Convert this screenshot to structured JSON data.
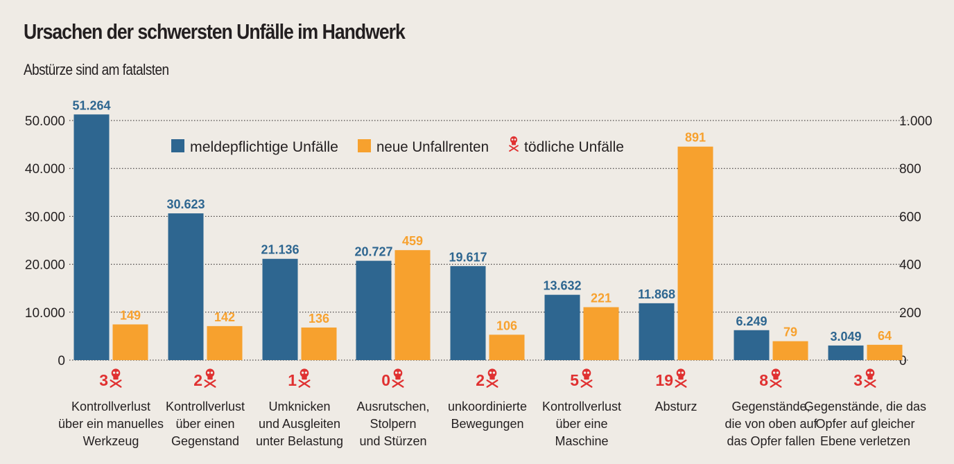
{
  "header": {
    "title": "Ursachen der schwersten Unfälle im Handwerk",
    "subtitle": "Abstürze sind am fatalsten"
  },
  "colors": {
    "background": "#efebe5",
    "reportable": "#2e6690",
    "pensions": "#f7a12e",
    "fatal": "#e03131",
    "text": "#231f20"
  },
  "chart_data": {
    "type": "bar",
    "title": "Ursachen der schwersten Unfälle im Handwerk",
    "subtitle": "Abstürze sind am fatalsten",
    "categories": [
      [
        "Kontrollverlust",
        "über ein manuelles",
        "Werkzeug"
      ],
      [
        "Kontrollverlust",
        "über einen",
        "Gegenstand"
      ],
      [
        "Umknicken",
        "und Ausgleiten",
        "unter Belastung"
      ],
      [
        "Ausrutschen,",
        "Stolpern",
        "und Stürzen"
      ],
      [
        "unkoordinierte",
        "Bewegungen"
      ],
      [
        "Kontrollverlust",
        "über eine",
        "Maschine"
      ],
      [
        "Absturz"
      ],
      [
        "Gegenstände,",
        "die von oben auf",
        "das Opfer fallen"
      ],
      [
        "Gegenstände, die das",
        "Opfer auf gleicher",
        "Ebene verletzen"
      ]
    ],
    "series": [
      {
        "name": "meldepflichtige Unfälle",
        "axis": "left",
        "values": [
          51264,
          30623,
          21136,
          20727,
          19617,
          13632,
          11868,
          6249,
          3049
        ],
        "labels": [
          "51.264",
          "30.623",
          "21.136",
          "20.727",
          "19.617",
          "13.632",
          "11.868",
          "6.249",
          "3.049"
        ]
      },
      {
        "name": "neue Unfallrenten",
        "axis": "right",
        "values": [
          149,
          142,
          136,
          459,
          106,
          221,
          891,
          79,
          64
        ],
        "labels": [
          "149",
          "142",
          "136",
          "459",
          "106",
          "221",
          "891",
          "79",
          "64"
        ]
      },
      {
        "name": "tödliche Unfälle",
        "axis": "none",
        "values": [
          3,
          2,
          1,
          0,
          2,
          5,
          19,
          8,
          3
        ],
        "labels": [
          "3",
          "2",
          "1",
          "0",
          "2",
          "5",
          "19",
          "8",
          "3"
        ]
      }
    ],
    "y_left": {
      "ylim": [
        0,
        50000
      ],
      "ticks": [
        0,
        10000,
        20000,
        30000,
        40000,
        50000
      ],
      "tick_labels": [
        "0",
        "10.000",
        "20.000",
        "30.000",
        "40.000",
        "50.000"
      ]
    },
    "y_right": {
      "ylim": [
        0,
        1000
      ],
      "ticks": [
        0,
        200,
        400,
        600,
        800,
        1000
      ],
      "tick_labels": [
        "0",
        "200",
        "400",
        "600",
        "800",
        "1.000"
      ]
    },
    "grid": "dotted horizontal",
    "legend": {
      "position": "top-center",
      "entries": [
        "meldepflichtige Unfälle",
        "neue Unfallrenten",
        "tödliche Unfälle"
      ]
    }
  }
}
